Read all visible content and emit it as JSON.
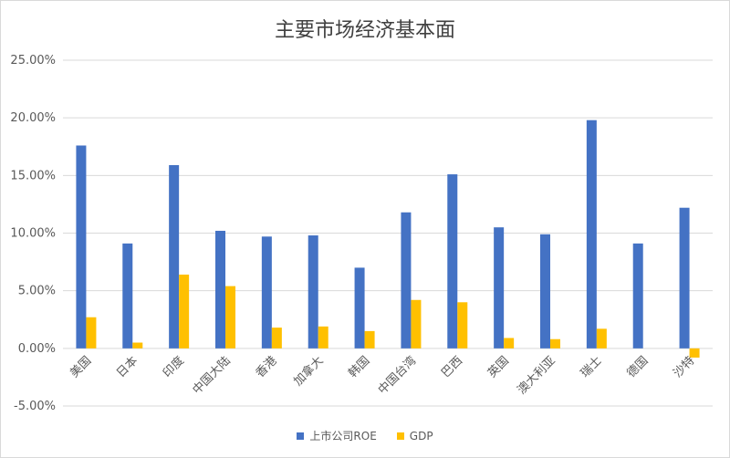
{
  "chart_data": {
    "type": "bar",
    "title": "主要市场经济基本面",
    "categories": [
      "美国",
      "日本",
      "印度",
      "中国大陆",
      "香港",
      "加拿大",
      "韩国",
      "中国台湾",
      "巴西",
      "英国",
      "澳大利亚",
      "瑞士",
      "德国",
      "沙特"
    ],
    "series": [
      {
        "name": "上市公司ROE",
        "color": "#4472c4",
        "values": [
          17.6,
          9.1,
          15.9,
          10.2,
          9.7,
          9.8,
          7.0,
          11.8,
          15.1,
          10.5,
          9.9,
          19.8,
          9.1,
          12.2
        ]
      },
      {
        "name": "GDP",
        "color": "#ffc000",
        "values": [
          2.7,
          0.5,
          6.4,
          5.4,
          1.8,
          1.9,
          1.5,
          4.2,
          4.0,
          0.9,
          0.8,
          1.7,
          0.0,
          -0.8
        ]
      }
    ],
    "y_tick_labels": [
      "-5.00%",
      "0.00%",
      "5.00%",
      "10.00%",
      "15.00%",
      "20.00%",
      "25.00%"
    ],
    "ylim": [
      -5,
      25
    ],
    "ytick_step": 5,
    "grid": true,
    "legend_position": "bottom"
  }
}
